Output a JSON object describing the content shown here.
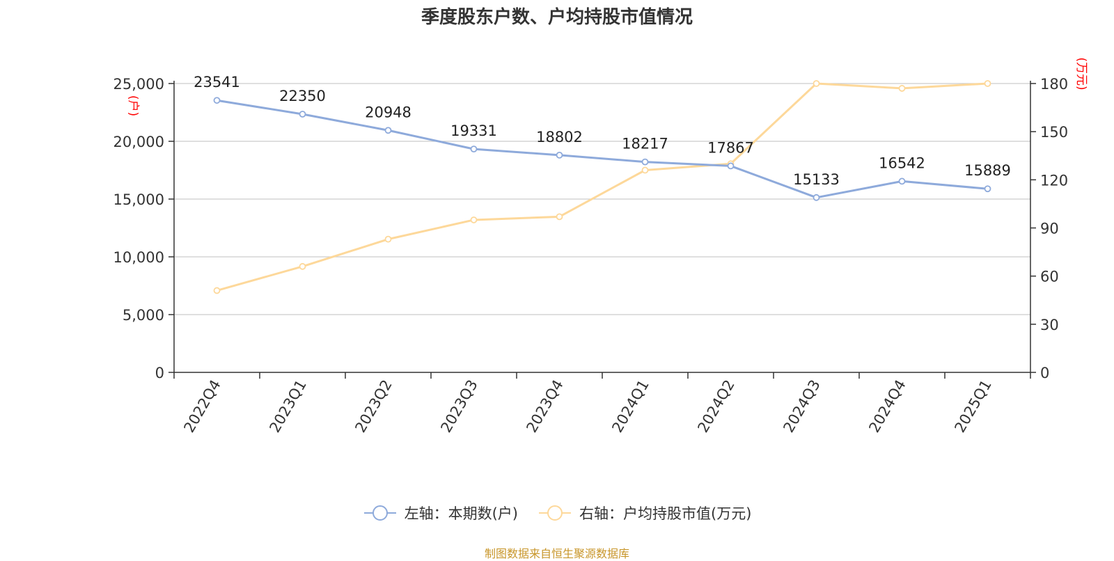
{
  "title": "季度股东户数、户均持股市值情况",
  "source_note": "制图数据来自恒生聚源数据库",
  "colors": {
    "left_series": "#8eaadb",
    "right_series": "#fdd89a",
    "axis_unit": "#ff0000",
    "grid": "#cccccc",
    "axis": "#333333"
  },
  "chart_data": {
    "type": "line",
    "categories": [
      "2022Q4",
      "2023Q1",
      "2023Q2",
      "2023Q3",
      "2023Q4",
      "2024Q1",
      "2024Q2",
      "2024Q3",
      "2024Q4",
      "2025Q1"
    ],
    "left_axis": {
      "unit": "(户)",
      "ylim": [
        0,
        25000
      ],
      "ticks": [
        "0",
        "5,000",
        "10,000",
        "15,000",
        "20,000",
        "25,000"
      ]
    },
    "right_axis": {
      "unit": "(万元)",
      "ylim": [
        0,
        180
      ],
      "ticks": [
        "0",
        "30",
        "60",
        "90",
        "120",
        "150",
        "180"
      ]
    },
    "grid": true,
    "legend_position": "bottom",
    "series": [
      {
        "name": "左轴：本期数(户)",
        "axis": "left",
        "show_labels": true,
        "values": [
          23541,
          22350,
          20948,
          19331,
          18802,
          18217,
          17867,
          15133,
          16542,
          15889
        ]
      },
      {
        "name": "右轴：户均持股市值(万元)",
        "axis": "right",
        "show_labels": false,
        "values": [
          51,
          66,
          83,
          95,
          97,
          126,
          130,
          180,
          177,
          180
        ]
      }
    ]
  }
}
